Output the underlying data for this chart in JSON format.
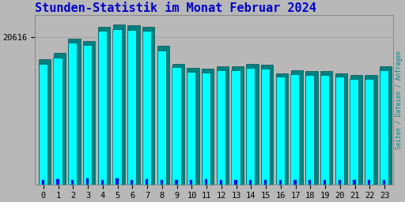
{
  "title": "Stunden-Statistik im Monat Februar 2024",
  "title_color": "#0000cc",
  "ylabel_right": "Seiten / Dateien / Anfragen",
  "ylabel_right_color": "#008888",
  "background_color": "#b8b8b8",
  "plot_bg_color": "#b8b8b8",
  "bar_color_cyan": "#00ffff",
  "bar_color_teal": "#008080",
  "bar_color_blue": "#0000ff",
  "bar_outline": "#004040",
  "categories": [
    0,
    1,
    2,
    3,
    4,
    5,
    6,
    7,
    8,
    9,
    10,
    11,
    12,
    13,
    14,
    15,
    16,
    17,
    18,
    19,
    20,
    21,
    22,
    23
  ],
  "values_teal": [
    850,
    890,
    990,
    975,
    1070,
    1085,
    1080,
    1070,
    940,
    820,
    790,
    785,
    800,
    800,
    815,
    812,
    755,
    775,
    770,
    768,
    755,
    742,
    740,
    802
  ],
  "values_cyan": [
    820,
    860,
    960,
    945,
    1040,
    1055,
    1050,
    1040,
    910,
    795,
    765,
    760,
    775,
    775,
    790,
    787,
    730,
    750,
    745,
    743,
    730,
    717,
    715,
    777
  ],
  "values_blue": [
    30,
    35,
    30,
    38,
    30,
    38,
    30,
    37,
    30,
    32,
    30,
    33,
    30,
    29,
    32,
    29,
    28,
    30,
    29,
    30,
    27,
    28,
    27,
    30
  ],
  "ytick_value": 1000,
  "ytick_label": "20616",
  "ylim_max": 1150,
  "figsize": [
    5.12,
    2.56
  ],
  "dpi": 100,
  "title_fontsize": 11,
  "tick_fontsize": 7.5
}
